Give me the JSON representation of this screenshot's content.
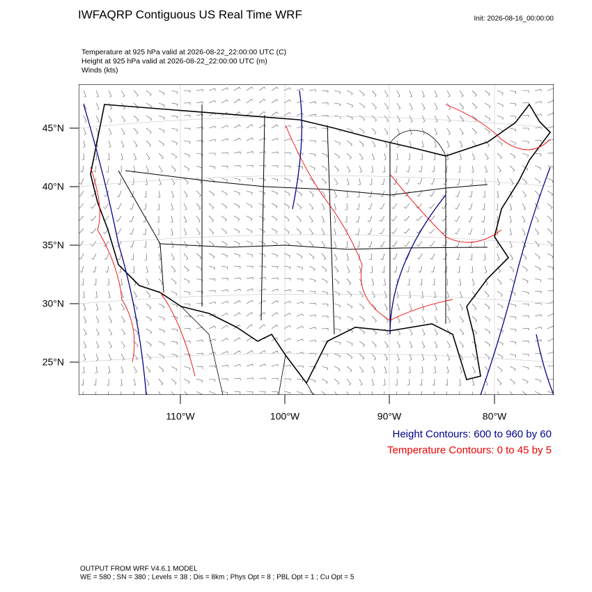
{
  "header": {
    "title": "IWFAQRP Contiguous US Real Time WRF",
    "init": "Init: 2026-08-16_00:00:00",
    "fields": [
      "Temperature at 925 hPa valid at 2026-08-22_22:00:00 UTC   (C)",
      "Height at 925 hPa valid at 2026-08-22_22:00:00 UTC   (m)",
      "Winds   (kts)"
    ]
  },
  "map": {
    "lat_labels": [
      "45°N",
      "40°N",
      "35°N",
      "30°N",
      "25°N"
    ],
    "lon_labels": [
      "110°W",
      "100°W",
      "90°W",
      "80°W"
    ]
  },
  "legend": {
    "height": "Height Contours: 600 to 960 by 60",
    "temperature": "Temperature Contours: 0 to 45 by 5"
  },
  "footer": [
    "OUTPUT FROM WRF V4.6.1 MODEL",
    "WE = 580 ; SN = 380 ; Levels = 38 ; Dis = 8km ; Phys Opt = 8 ; PBL Opt = 1 ; Cu Opt = 5"
  ]
}
